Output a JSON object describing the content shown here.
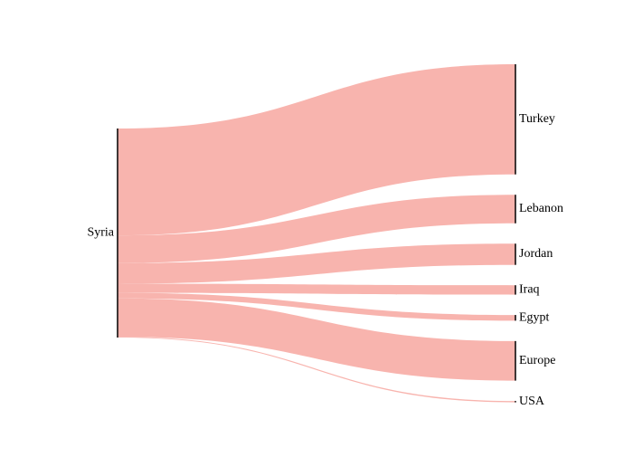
{
  "chart_data": {
    "type": "sankey",
    "colors": {
      "flow": "#f8b4ae",
      "node_bar": "#000000"
    },
    "source": {
      "label": "Syria"
    },
    "targets": [
      {
        "label": "Turkey",
        "value": 2.7
      },
      {
        "label": "Lebanon",
        "value": 0.7
      },
      {
        "label": "Jordan",
        "value": 0.52
      },
      {
        "label": "Iraq",
        "value": 0.23
      },
      {
        "label": "Egypt",
        "value": 0.14
      },
      {
        "label": "Europe",
        "value": 0.97
      },
      {
        "label": "USA",
        "value": 0.02
      }
    ]
  }
}
